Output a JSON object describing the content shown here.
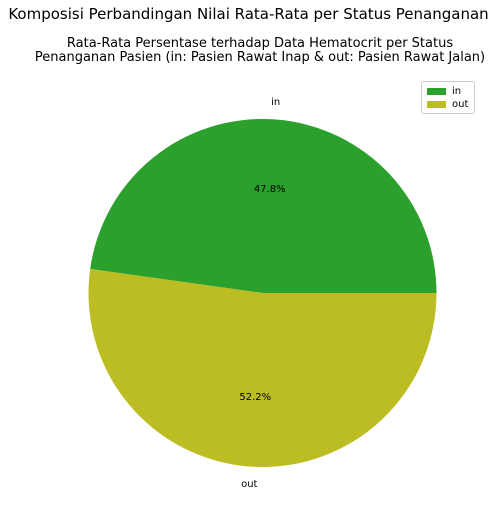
{
  "chart_data": {
    "type": "pie",
    "suptitle": "Komposisi Perbandingan Nilai Rata-Rata per Status Penanganan",
    "title_lines": [
      "Rata-Rata Persentase terhadap Data Hematocrit per Status",
      "Penanganan Pasien (in: Pasien Rawat Inap & out: Pasien Rawat Jalan)"
    ],
    "labels": [
      "in",
      "out"
    ],
    "values": [
      47.8,
      52.2
    ],
    "percent_labels": [
      "47.8%",
      "52.2%"
    ],
    "colors": [
      "#2ca02c",
      "#bcbd22"
    ],
    "legend_position": "upper right"
  }
}
